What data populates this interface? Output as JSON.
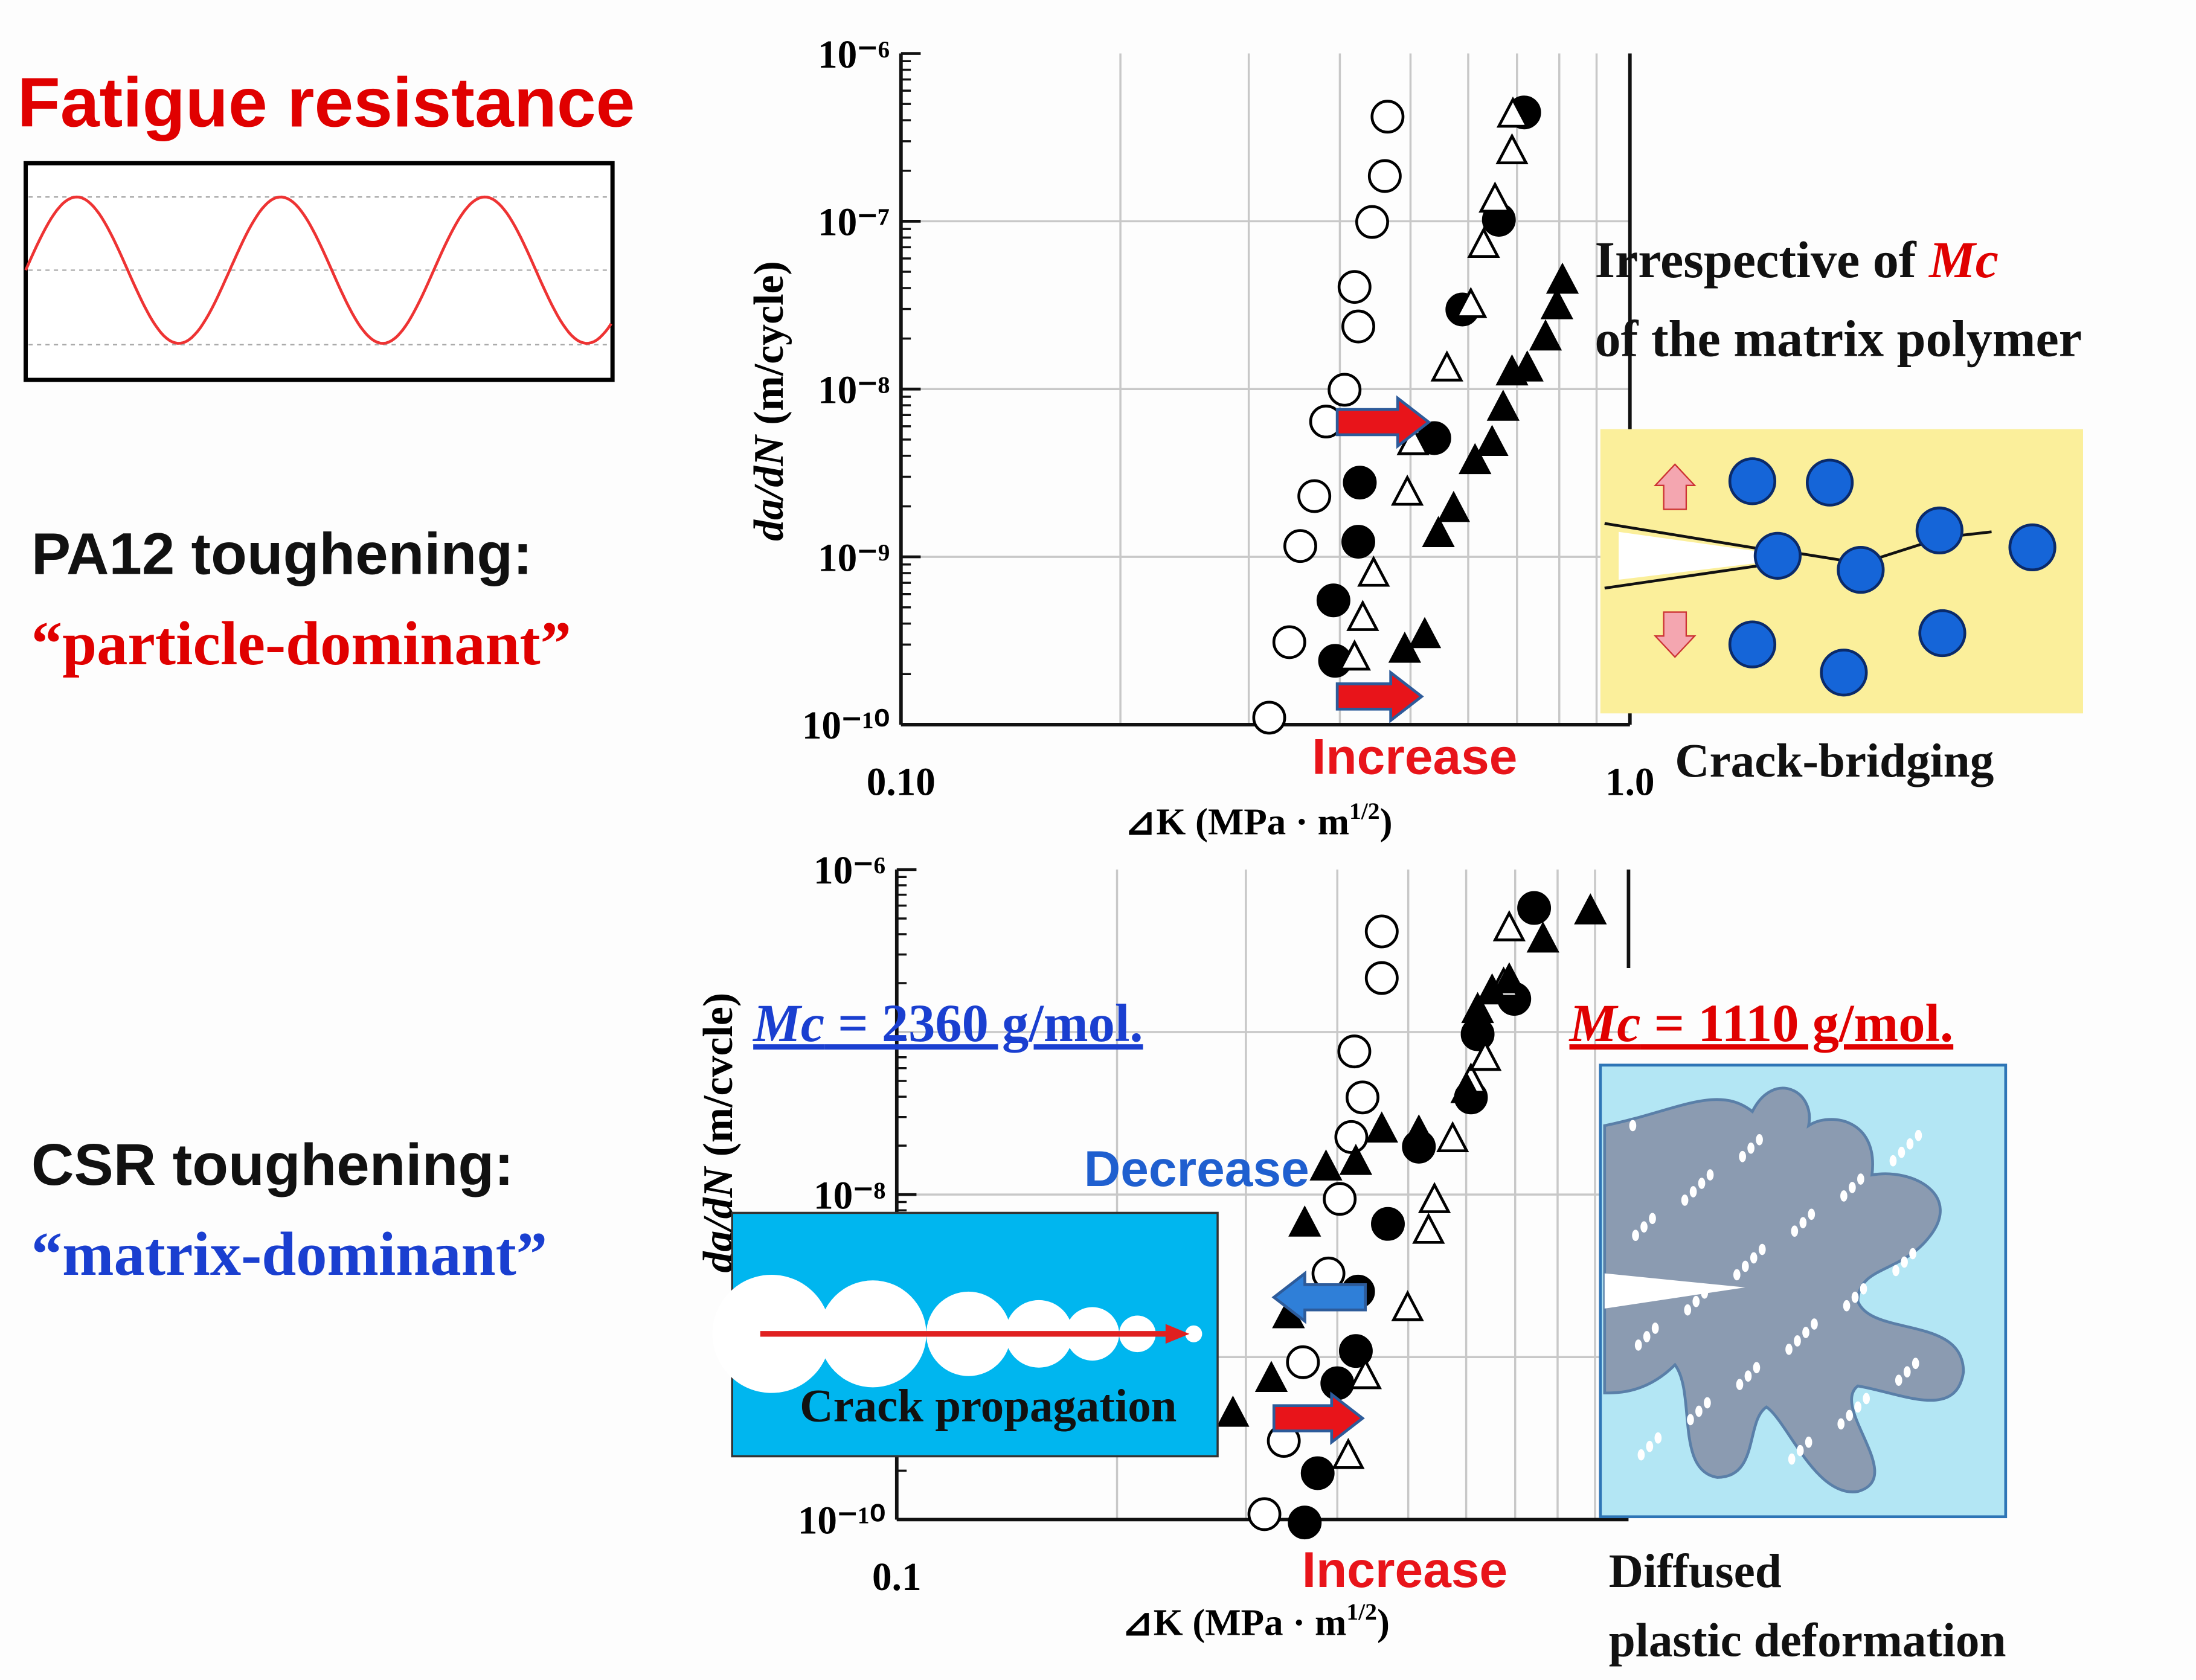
{
  "labels": {
    "fatigue": "Fatigue resistance",
    "pa12": "PA12 toughening:",
    "particle": "“particle-dominant”",
    "csr": "CSR toughening:",
    "matrix": "“matrix-dominant”"
  },
  "chart_data": [
    {
      "type": "scatter",
      "log_x": true,
      "log_y": true,
      "grid": true,
      "xlabel": [
        "⊿K (MPa · m",
        "1/2",
        ")"
      ],
      "ylabel": [
        "da/dN",
        " (m/cycle)"
      ],
      "xlim": [
        0.1,
        1
      ],
      "ylim": [
        1e-10,
        1e-06
      ],
      "xticks": [
        {
          "value": 0.1,
          "label": "0.10"
        },
        {
          "value": 1,
          "label": "1.0"
        }
      ],
      "yticks": [
        {
          "value": 1e-10,
          "label": "10⁻¹⁰"
        },
        {
          "value": 1e-09,
          "label": "10⁻⁹"
        },
        {
          "value": 1e-08,
          "label": "10⁻⁸"
        },
        {
          "value": 1e-07,
          "label": "10⁻⁷"
        },
        {
          "value": 1e-06,
          "label": "10⁻⁶"
        }
      ],
      "annotations": {
        "increase": "Increase",
        "bridging": "Crack-bridging",
        "irrespective": "Irrespective of ",
        "mc": "Mc",
        "matrix_polymer": "of the matrix polymer"
      },
      "series": [
        {
          "marker": "circle-open",
          "color": "#000000",
          "x": [
            0.32,
            0.341,
            0.353,
            0.369,
            0.383,
            0.406,
            0.424,
            0.419,
            0.443,
            0.461,
            0.465
          ],
          "values": [
            1.1e-10,
            3.1e-10,
            1.16e-09,
            2.3e-09,
            6.4e-09,
            9.9e-09,
            2.36e-08,
            4.06e-08,
            9.9e-08,
            1.86e-07,
            4.2e-07
          ]
        },
        {
          "marker": "circle-filled",
          "color": "#000000",
          "x": [
            0.394,
            0.392,
            0.424,
            0.426,
            0.539,
            0.589,
            0.661,
            0.716
          ],
          "values": [
            2.4e-10,
            5.5e-10,
            1.23e-09,
            2.77e-09,
            5.1e-09,
            2.98e-08,
            1.02e-07,
            4.45e-07
          ]
        },
        {
          "marker": "triangle-open",
          "color": "#000000",
          "x": [
            0.419,
            0.43,
            0.445,
            0.495,
            0.504,
            0.561,
            0.605,
            0.63,
            0.653,
            0.689,
            0.691
          ],
          "values": [
            2.5e-10,
            4.3e-10,
            7.9e-10,
            2.4e-09,
            4.8e-09,
            1.32e-08,
            3.15e-08,
            7.2e-08,
            1.34e-07,
            2.6e-07,
            4.3e-07
          ]
        },
        {
          "marker": "triangle-filled",
          "color": "#000000",
          "x": [
            0.491,
            0.523,
            0.546,
            0.573,
            0.613,
            0.647,
            0.67,
            0.689,
            0.723,
            0.766,
            0.794,
            0.808
          ],
          "values": [
            2.78e-10,
            3.4e-10,
            1.36e-09,
            1.92e-09,
            3.7e-09,
            4.75e-09,
            7.7e-09,
            1.25e-08,
            1.32e-08,
            2.02e-08,
            3.1e-08,
            4.4e-08
          ]
        }
      ]
    },
    {
      "type": "scatter",
      "log_x": true,
      "log_y": true,
      "grid": true,
      "xlabel": [
        "⊿K (MPa · m",
        "1/2",
        ")"
      ],
      "ylabel": [
        "da/dN",
        " (m/cvcle)"
      ],
      "xlim": [
        0.1,
        1
      ],
      "ylim": [
        1e-10,
        1e-06
      ],
      "xticks": [
        0.1
      ],
      "yticks": [
        {
          "value": 1e-10,
          "label": "10⁻¹⁰"
        },
        {
          "value": 1e-08,
          "label": "10⁻⁸"
        },
        {
          "value": 1e-06,
          "label": "10⁻⁶"
        }
      ],
      "annotations": {
        "mc_left": "Mc",
        "mc_left_rest": " = 2360 g/mol.",
        "mc_right": "Mc",
        "mc_right_rest": " = 1110 g/mol.",
        "decrease": "Decrease",
        "increase": "Increase",
        "propagation": "Crack propagation",
        "diffused": "Diffused",
        "plastic": "plastic deformation"
      },
      "series": [
        {
          "marker": "circle-open",
          "color": "#000000",
          "x": [
            0.318,
            0.338,
            0.359,
            0.389,
            0.403,
            0.418,
            0.433,
            0.422,
            0.46,
            0.46
          ],
          "values": [
            1.08e-10,
            3.05e-10,
            9.3e-10,
            3.27e-09,
            9.4e-09,
            2.26e-08,
            3.96e-08,
            7.6e-08,
            2.15e-07,
            4.16e-07
          ]
        },
        {
          "marker": "circle-filled",
          "color": "#000000",
          "x": [
            0.361,
            0.376,
            0.4,
            0.424,
            0.427,
            0.469,
            0.517,
            0.609,
            0.622,
            0.698,
            0.743
          ],
          "values": [
            9.6e-11,
            1.93e-10,
            6.9e-10,
            1.09e-09,
            2.53e-09,
            6.6e-09,
            1.97e-08,
            3.96e-08,
            9.7e-08,
            1.6e-07,
            5.8e-07
          ]
        },
        {
          "marker": "triangle-open",
          "color": "#000000",
          "x": [
            0.414,
            0.437,
            0.499,
            0.533,
            0.543,
            0.575,
            0.609,
            0.637,
            0.675,
            0.687
          ],
          "values": [
            2.45e-10,
            7.6e-10,
            1.99e-09,
            5.96e-09,
            9.2e-09,
            2.18e-08,
            5e-08,
            6.9e-08,
            1.95e-07,
            4.33e-07
          ]
        },
        {
          "marker": "triangle-filled",
          "color": "#000000",
          "x": [
            0.288,
            0.325,
            0.343,
            0.361,
            0.386,
            0.424,
            0.46,
            0.517,
            0.601,
            0.622,
            0.651,
            0.687,
            0.764,
            0.887
          ],
          "values": [
            4.46e-10,
            7.3e-10,
            1.8e-09,
            6.6e-09,
            1.46e-08,
            1.58e-08,
            2.5e-08,
            2.4e-08,
            4.37e-08,
            1.36e-07,
            1.77e-07,
            2.07e-07,
            3.69e-07,
            5.5e-07
          ]
        }
      ]
    }
  ]
}
